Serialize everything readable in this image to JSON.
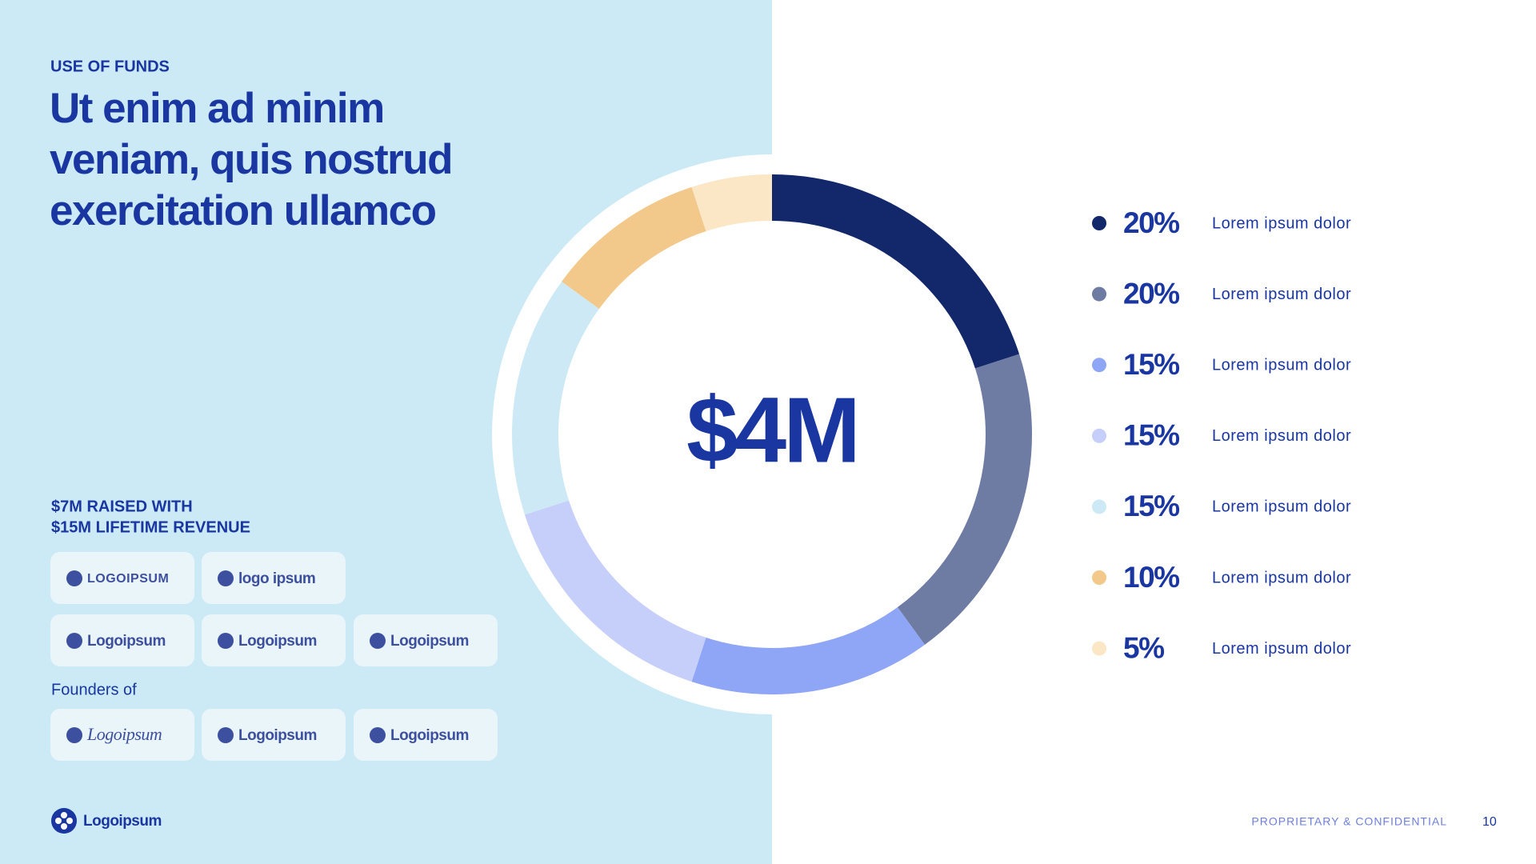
{
  "header": {
    "eyebrow": "USE OF FUNDS",
    "title_lines": [
      "Ut enim ad minim",
      "veniam, quis nostrud",
      "exercitation ullamco"
    ]
  },
  "chart_data": {
    "type": "donut",
    "center_label": "$4M",
    "categories": [
      "Lorem ipsum dolor",
      "Lorem ipsum dolor",
      "Lorem ipsum dolor",
      "Lorem ipsum dolor",
      "Lorem ipsum dolor",
      "Lorem ipsum dolor",
      "Lorem ipsum dolor"
    ],
    "values": [
      20,
      20,
      15,
      15,
      15,
      10,
      5
    ],
    "value_labels": [
      "20%",
      "20%",
      "15%",
      "15%",
      "15%",
      "10%",
      "5%"
    ],
    "colors": [
      "#13286a",
      "#6e7ba3",
      "#8fa5f5",
      "#c5cff9",
      "#cde9f5",
      "#f3c98b",
      "#fbe6c6"
    ]
  },
  "traction": {
    "lines": [
      "$7M RAISED WITH",
      "$15M LIFETIME REVENUE"
    ],
    "investor_logos": [
      "LOGOIPSUM",
      "logo ipsum",
      "Logoipsum",
      "Logoipsum",
      "Logoipsum"
    ],
    "founders_label": "Founders of",
    "founder_logos": [
      "Logoipsum",
      "Logoipsum",
      "Logoipsum"
    ]
  },
  "footer": {
    "brand": "Logoipsum",
    "confidential": "PROPRIETARY & CONFIDENTIAL",
    "page": "10"
  }
}
